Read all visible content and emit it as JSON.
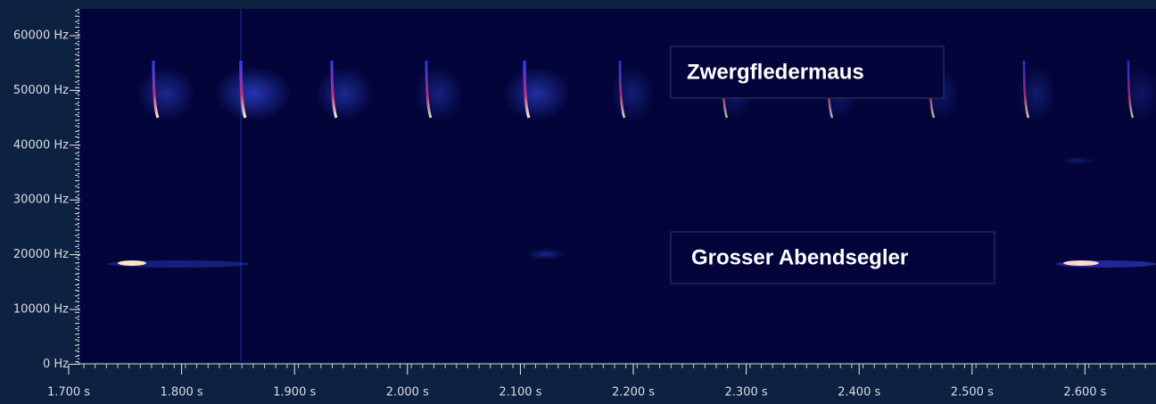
{
  "y_axis": {
    "ticks": [
      "60000 Hz",
      "50000 Hz",
      "40000 Hz",
      "30000 Hz",
      "20000 Hz",
      "10000 Hz",
      "0 Hz"
    ]
  },
  "x_axis": {
    "ticks": [
      "1.700 s",
      "1.800 s",
      "1.900 s",
      "2.000 s",
      "2.100 s",
      "2.200 s",
      "2.300 s",
      "2.400 s",
      "2.500 s",
      "2.600 s"
    ]
  },
  "annotations": [
    "Zwergfledermaus",
    "Grosser Abendsegler"
  ]
}
